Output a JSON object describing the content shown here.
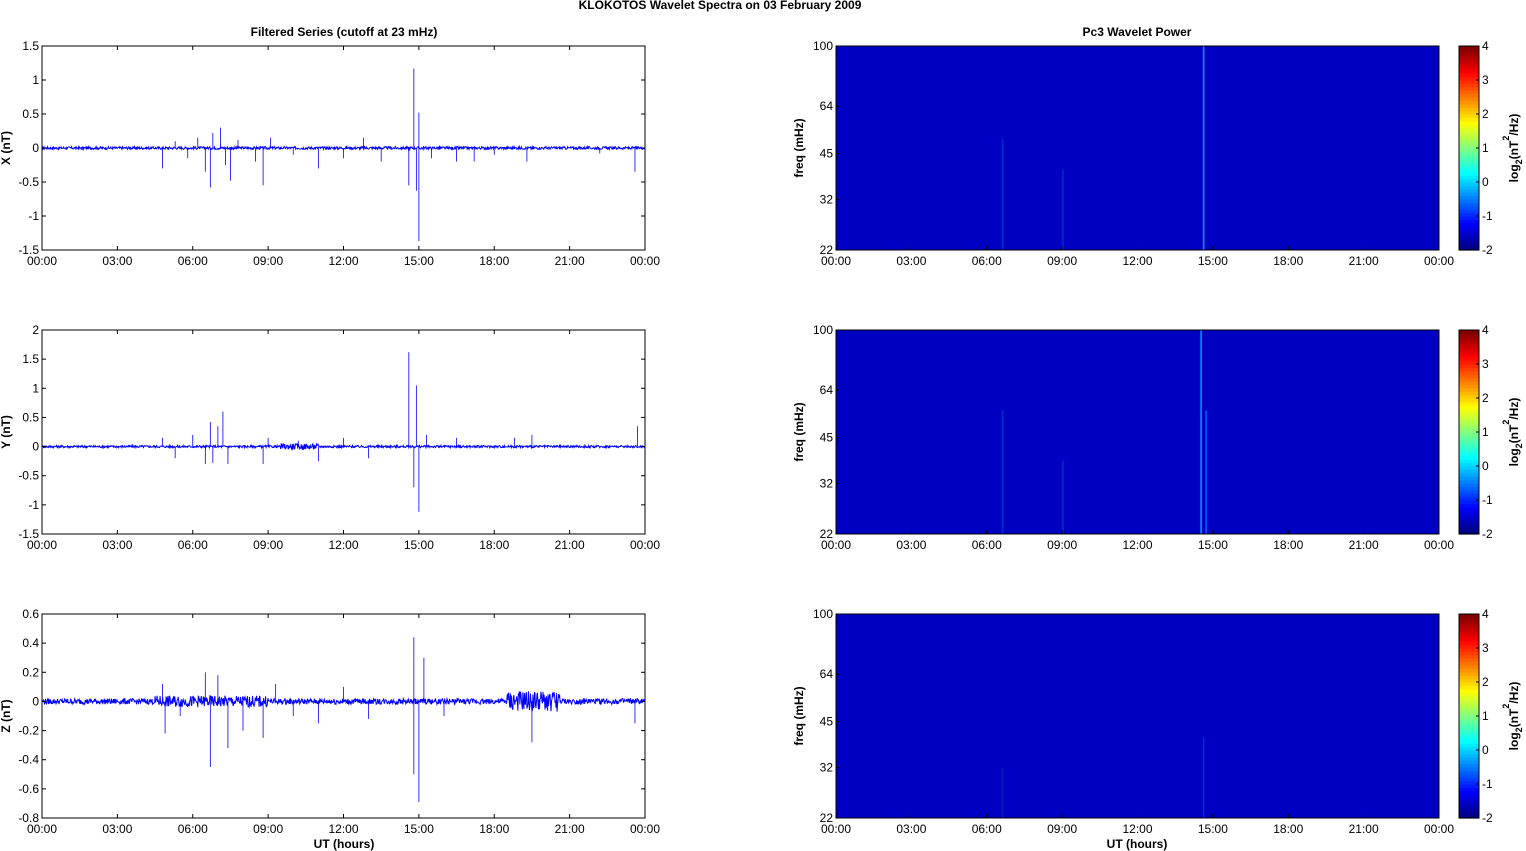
{
  "figure": {
    "title": "KLOKOTOS Wavelet Spectra on 03 February  2009",
    "left_title": "Filtered Series (cutoff at 23 mHz)",
    "right_title": "Pc3 Wavelet Power",
    "xlabel": "UT (hours)",
    "freq_label": "freq (mHz)",
    "colorbar_label_prefix": "log",
    "colorbar_label_sub": "2",
    "colorbar_label_mid": "(nT",
    "colorbar_label_sup": "2",
    "colorbar_label_suffix": "/Hz)"
  },
  "colors": {
    "trace": "#0000ff",
    "spectrogram_background": "#00008f",
    "axis": "#000000"
  },
  "chart_data": [
    {
      "type": "line",
      "component": "X",
      "ylabel": "X (nT)",
      "xlim_hours": [
        0,
        24
      ],
      "ylim": [
        -1.5,
        1.5
      ],
      "x_ticks": [
        "00:00",
        "03:00",
        "06:00",
        "09:00",
        "12:00",
        "15:00",
        "18:00",
        "21:00",
        "00:00"
      ],
      "y_ticks": [
        "-1.5",
        "-1",
        "-0.5",
        "0",
        "0.5",
        "1",
        "1.5"
      ],
      "y_tick_values": [
        -1.5,
        -1,
        -0.5,
        0,
        0.5,
        1,
        1.5
      ],
      "noise_amplitude": 0.02,
      "spikes": [
        {
          "t": 4.8,
          "v": -0.3
        },
        {
          "t": 5.3,
          "v": 0.1
        },
        {
          "t": 5.8,
          "v": -0.15
        },
        {
          "t": 6.2,
          "v": 0.15
        },
        {
          "t": 6.5,
          "v": -0.35
        },
        {
          "t": 6.7,
          "v": -0.58
        },
        {
          "t": 6.8,
          "v": 0.22
        },
        {
          "t": 7.1,
          "v": 0.3
        },
        {
          "t": 7.3,
          "v": -0.25
        },
        {
          "t": 7.5,
          "v": -0.48
        },
        {
          "t": 7.8,
          "v": 0.12
        },
        {
          "t": 8.5,
          "v": -0.2
        },
        {
          "t": 8.8,
          "v": -0.55
        },
        {
          "t": 9.1,
          "v": 0.15
        },
        {
          "t": 10.0,
          "v": -0.1
        },
        {
          "t": 11.0,
          "v": -0.3
        },
        {
          "t": 12.0,
          "v": -0.15
        },
        {
          "t": 12.8,
          "v": 0.15
        },
        {
          "t": 13.5,
          "v": -0.2
        },
        {
          "t": 14.6,
          "v": -0.55
        },
        {
          "t": 14.8,
          "v": 1.17
        },
        {
          "t": 14.9,
          "v": -0.63
        },
        {
          "t": 15.0,
          "v": -1.37
        },
        {
          "t": 15.0,
          "v": 0.52
        },
        {
          "t": 15.5,
          "v": -0.15
        },
        {
          "t": 16.5,
          "v": -0.2
        },
        {
          "t": 17.2,
          "v": -0.2
        },
        {
          "t": 18.0,
          "v": -0.1
        },
        {
          "t": 19.3,
          "v": -0.2
        },
        {
          "t": 22.2,
          "v": -0.08
        },
        {
          "t": 23.6,
          "v": -0.35
        }
      ],
      "busy_intervals": []
    },
    {
      "type": "line",
      "component": "Y",
      "ylabel": "Y (nT)",
      "xlim_hours": [
        0,
        24
      ],
      "ylim": [
        -1.5,
        2
      ],
      "x_ticks": [
        "00:00",
        "03:00",
        "06:00",
        "09:00",
        "12:00",
        "15:00",
        "18:00",
        "21:00",
        "00:00"
      ],
      "y_ticks": [
        "-1.5",
        "-1",
        "-0.5",
        "0",
        "0.5",
        "1",
        "1.5",
        "2"
      ],
      "y_tick_values": [
        -1.5,
        -1,
        -0.5,
        0,
        0.5,
        1,
        1.5,
        2
      ],
      "noise_amplitude": 0.02,
      "spikes": [
        {
          "t": 4.8,
          "v": 0.15
        },
        {
          "t": 5.3,
          "v": -0.2
        },
        {
          "t": 6.0,
          "v": 0.2
        },
        {
          "t": 6.5,
          "v": -0.3
        },
        {
          "t": 6.7,
          "v": 0.42
        },
        {
          "t": 6.8,
          "v": -0.28
        },
        {
          "t": 7.0,
          "v": 0.35
        },
        {
          "t": 7.2,
          "v": 0.6
        },
        {
          "t": 7.4,
          "v": -0.3
        },
        {
          "t": 8.8,
          "v": -0.3
        },
        {
          "t": 9.0,
          "v": 0.15
        },
        {
          "t": 10.2,
          "v": 0.1
        },
        {
          "t": 11.0,
          "v": -0.25
        },
        {
          "t": 12.0,
          "v": 0.15
        },
        {
          "t": 13.0,
          "v": -0.2
        },
        {
          "t": 14.6,
          "v": 1.62
        },
        {
          "t": 14.8,
          "v": -0.7
        },
        {
          "t": 14.9,
          "v": 1.05
        },
        {
          "t": 15.0,
          "v": -1.12
        },
        {
          "t": 15.3,
          "v": 0.2
        },
        {
          "t": 16.5,
          "v": 0.15
        },
        {
          "t": 18.8,
          "v": 0.15
        },
        {
          "t": 19.5,
          "v": 0.2
        },
        {
          "t": 23.7,
          "v": 0.35
        }
      ],
      "busy_intervals": [
        {
          "from": 9.5,
          "to": 11.0,
          "amplitude": 0.05
        }
      ]
    },
    {
      "type": "line",
      "component": "Z",
      "ylabel": "Z (nT)",
      "xlim_hours": [
        0,
        24
      ],
      "ylim": [
        -0.8,
        0.6
      ],
      "x_ticks": [
        "00:00",
        "03:00",
        "06:00",
        "09:00",
        "12:00",
        "15:00",
        "18:00",
        "21:00",
        "00:00"
      ],
      "y_ticks": [
        "-0.8",
        "-0.6",
        "-0.4",
        "-0.2",
        "0",
        "0.2",
        "0.4",
        "0.6"
      ],
      "y_tick_values": [
        -0.8,
        -0.6,
        -0.4,
        -0.2,
        0,
        0.2,
        0.4,
        0.6
      ],
      "noise_amplitude": 0.02,
      "spikes": [
        {
          "t": 4.8,
          "v": 0.12
        },
        {
          "t": 4.9,
          "v": -0.22
        },
        {
          "t": 5.5,
          "v": -0.1
        },
        {
          "t": 6.5,
          "v": 0.2
        },
        {
          "t": 6.7,
          "v": -0.45
        },
        {
          "t": 7.0,
          "v": 0.18
        },
        {
          "t": 7.4,
          "v": -0.32
        },
        {
          "t": 8.0,
          "v": -0.2
        },
        {
          "t": 8.8,
          "v": -0.25
        },
        {
          "t": 9.3,
          "v": 0.12
        },
        {
          "t": 10.0,
          "v": -0.1
        },
        {
          "t": 11.0,
          "v": -0.15
        },
        {
          "t": 12.0,
          "v": 0.1
        },
        {
          "t": 13.0,
          "v": -0.12
        },
        {
          "t": 14.8,
          "v": 0.44
        },
        {
          "t": 14.8,
          "v": -0.5
        },
        {
          "t": 15.0,
          "v": -0.69
        },
        {
          "t": 15.2,
          "v": 0.3
        },
        {
          "t": 16.0,
          "v": -0.1
        },
        {
          "t": 19.5,
          "v": -0.28
        },
        {
          "t": 23.6,
          "v": -0.15
        }
      ],
      "busy_intervals": [
        {
          "from": 4.5,
          "to": 9.0,
          "amplitude": 0.04
        },
        {
          "from": 18.5,
          "to": 20.6,
          "amplitude": 0.07
        }
      ]
    },
    {
      "type": "heatmap",
      "component": "X",
      "ylabel": "freq (mHz)",
      "xlim_hours": [
        0,
        24
      ],
      "ylim_mHz": [
        22,
        100
      ],
      "x_ticks": [
        "00:00",
        "03:00",
        "06:00",
        "09:00",
        "12:00",
        "15:00",
        "18:00",
        "21:00",
        "00:00"
      ],
      "y_ticks": [
        "22",
        "32",
        "45",
        "64",
        "100"
      ],
      "y_tick_values": [
        22,
        32,
        45,
        64,
        100
      ],
      "colorbar_ticks": [
        "-2",
        "-1",
        "0",
        "1",
        "2",
        "3",
        "4"
      ],
      "colorbar_values": [
        -2,
        -1,
        0,
        1,
        2,
        3,
        4
      ],
      "background_log2_power": -1.6,
      "streaks": [
        {
          "t": 6.6,
          "f_top": 50,
          "color": "#0030d0"
        },
        {
          "t": 9.0,
          "f_top": 40,
          "color": "#0030d0"
        },
        {
          "t": 14.6,
          "f_top": 100,
          "color": "#00a0ff"
        }
      ]
    },
    {
      "type": "heatmap",
      "component": "Y",
      "ylabel": "freq (mHz)",
      "xlim_hours": [
        0,
        24
      ],
      "ylim_mHz": [
        22,
        100
      ],
      "x_ticks": [
        "00:00",
        "03:00",
        "06:00",
        "09:00",
        "12:00",
        "15:00",
        "18:00",
        "21:00",
        "00:00"
      ],
      "y_ticks": [
        "22",
        "32",
        "45",
        "64",
        "100"
      ],
      "y_tick_values": [
        22,
        32,
        45,
        64,
        100
      ],
      "colorbar_ticks": [
        "-2",
        "-1",
        "0",
        "1",
        "2",
        "3",
        "4"
      ],
      "colorbar_values": [
        -2,
        -1,
        0,
        1,
        2,
        3,
        4
      ],
      "background_log2_power": -1.6,
      "streaks": [
        {
          "t": 6.6,
          "f_top": 55,
          "color": "#0030d0"
        },
        {
          "t": 9.0,
          "f_top": 38,
          "color": "#0030d0"
        },
        {
          "t": 14.5,
          "f_top": 100,
          "color": "#00a0ff"
        },
        {
          "t": 14.7,
          "f_top": 55,
          "color": "#0060ff"
        }
      ]
    },
    {
      "type": "heatmap",
      "component": "Z",
      "ylabel": "freq (mHz)",
      "xlim_hours": [
        0,
        24
      ],
      "ylim_mHz": [
        22,
        100
      ],
      "x_ticks": [
        "00:00",
        "03:00",
        "06:00",
        "09:00",
        "12:00",
        "15:00",
        "18:00",
        "21:00",
        "00:00"
      ],
      "y_ticks": [
        "22",
        "32",
        "45",
        "64",
        "100"
      ],
      "y_tick_values": [
        22,
        32,
        45,
        64,
        100
      ],
      "colorbar_ticks": [
        "-2",
        "-1",
        "0",
        "1",
        "2",
        "3",
        "4"
      ],
      "colorbar_values": [
        -2,
        -1,
        0,
        1,
        2,
        3,
        4
      ],
      "background_log2_power": -1.6,
      "streaks": [
        {
          "t": 6.6,
          "f_top": 32,
          "color": "#0020c0"
        },
        {
          "t": 14.6,
          "f_top": 40,
          "color": "#0030d0"
        }
      ]
    }
  ]
}
